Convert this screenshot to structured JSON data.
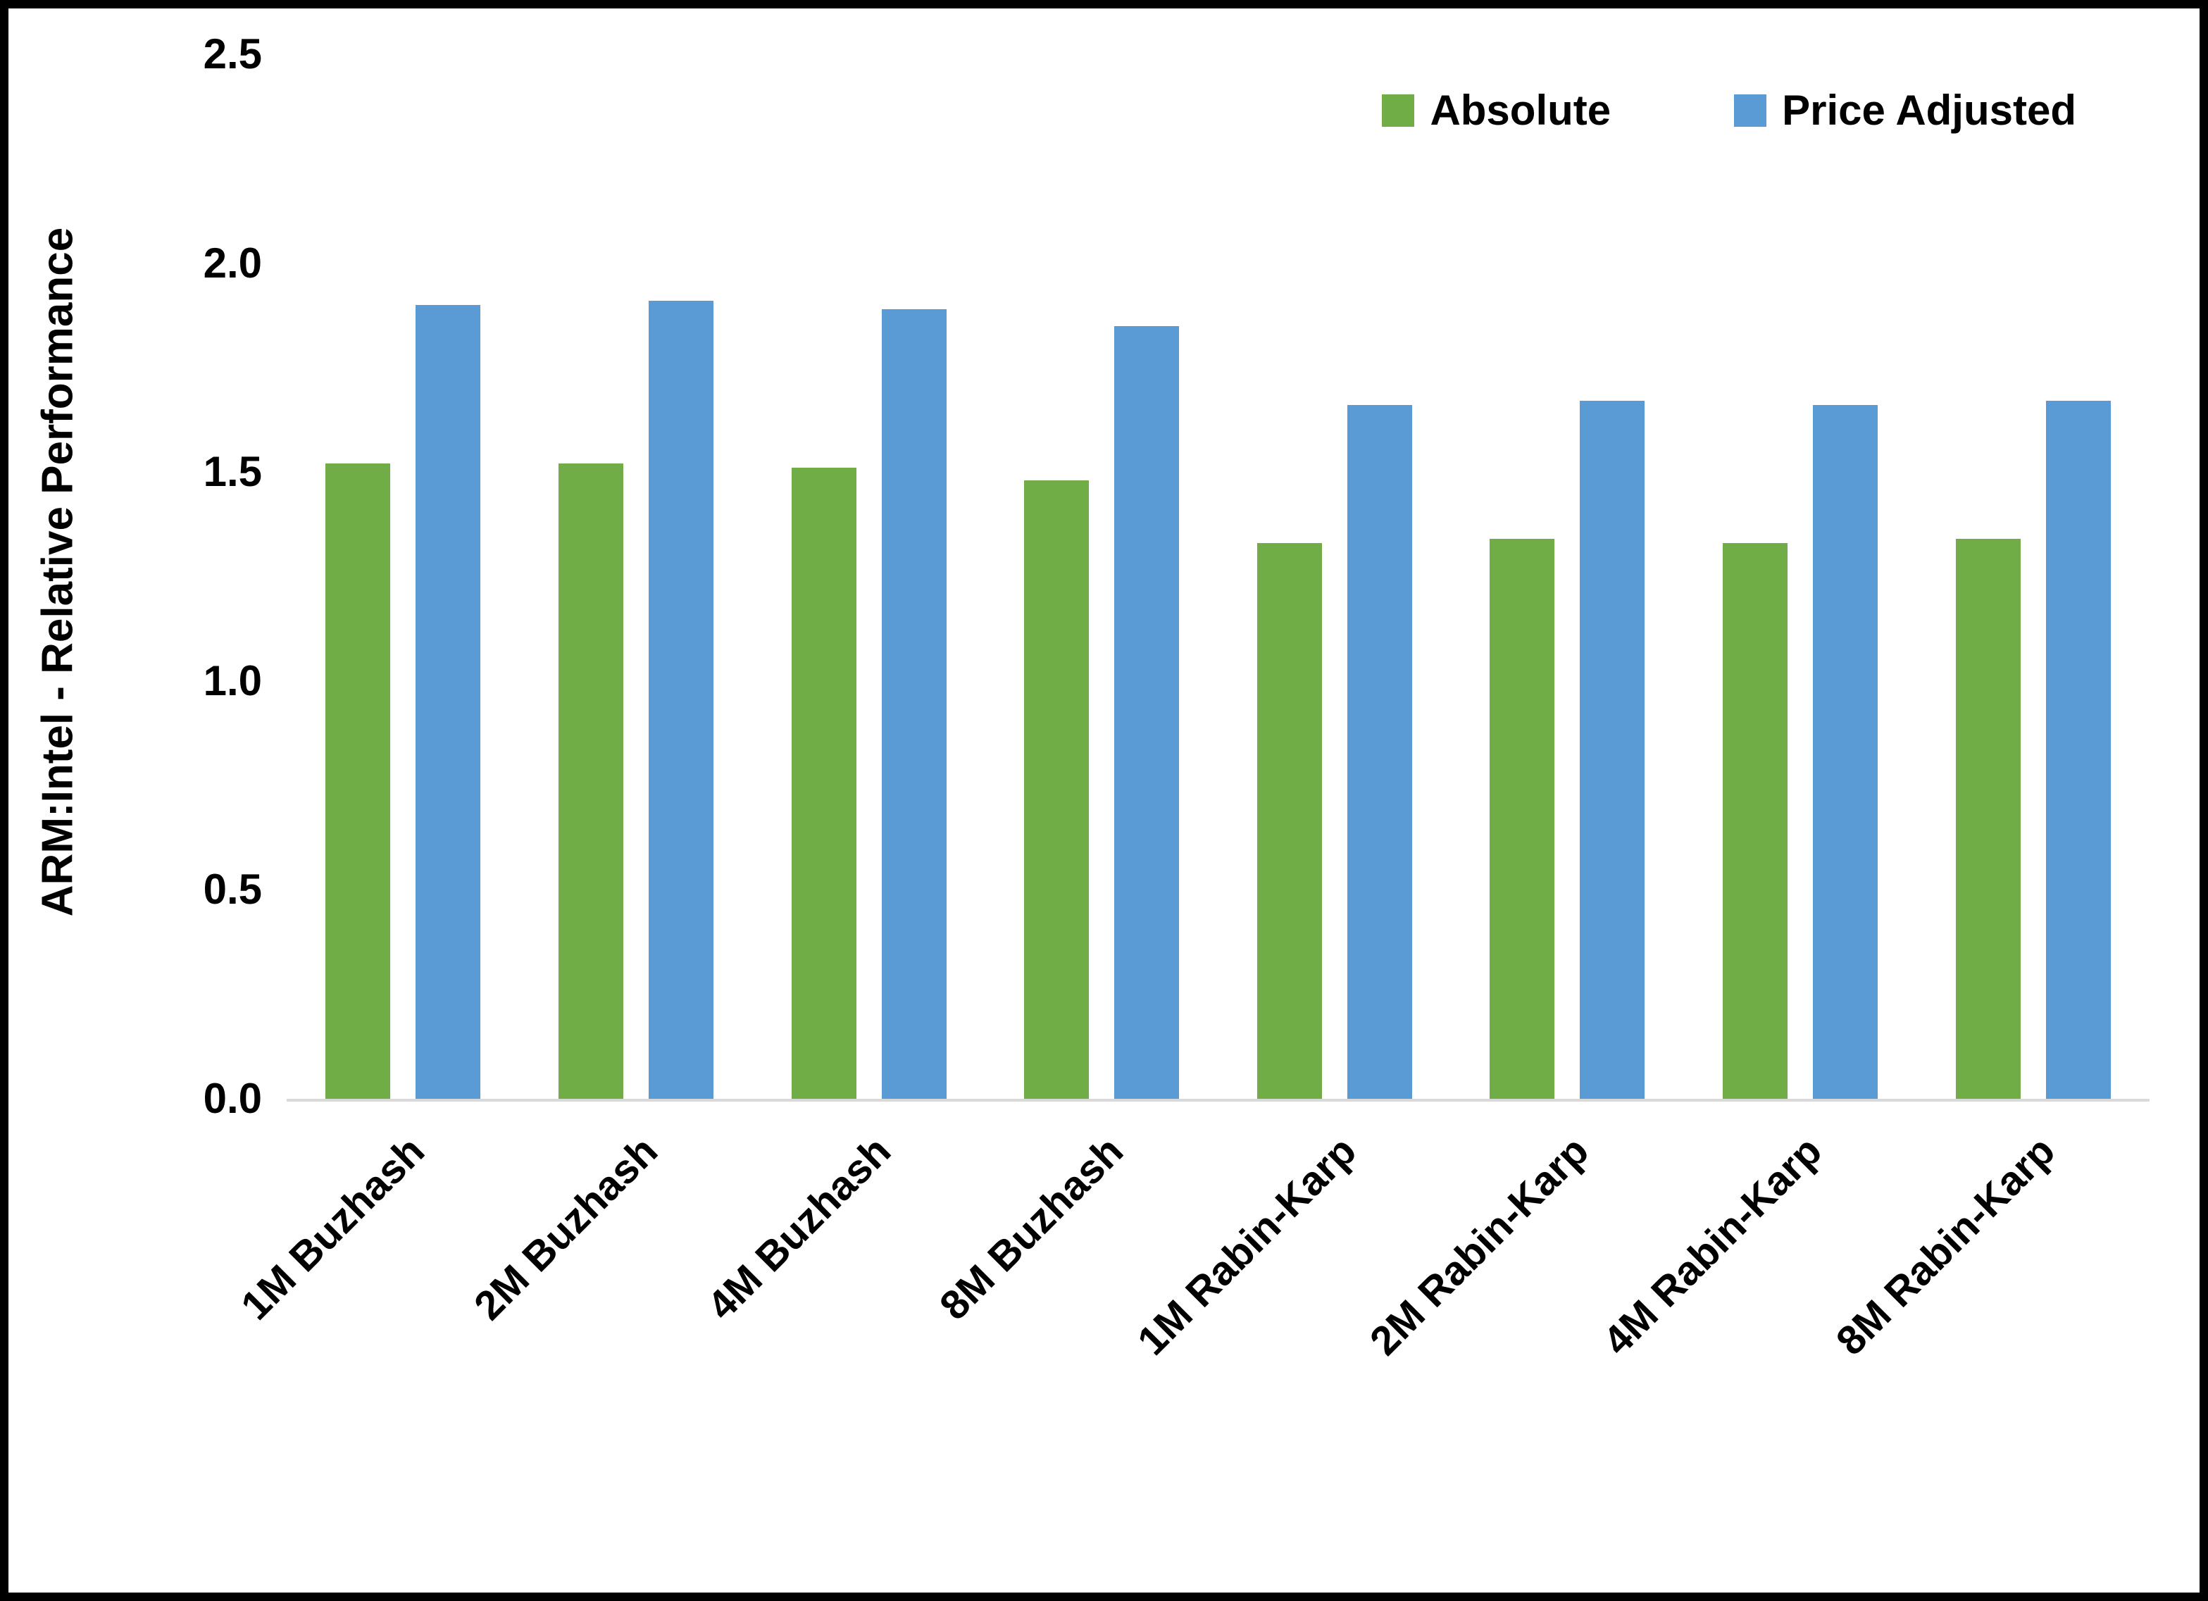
{
  "chart_data": {
    "type": "bar",
    "title": "",
    "categories": [
      "1M Buzhash",
      "2M Buzhash",
      "4M Buzhash",
      "8M Buzhash",
      "1M Rabin-Karp",
      "2M Rabin-Karp",
      "4M Rabin-Karp",
      "8M Rabin-Karp"
    ],
    "series": [
      {
        "name": "Absolute",
        "color": "#70AD47",
        "values": [
          1.52,
          1.52,
          1.51,
          1.48,
          1.33,
          1.34,
          1.33,
          1.34
        ]
      },
      {
        "name": "Price Adjusted",
        "color": "#5B9BD5",
        "values": [
          1.9,
          1.91,
          1.89,
          1.85,
          1.66,
          1.67,
          1.66,
          1.67
        ]
      }
    ],
    "xlabel": "",
    "ylabel": "ARM:Intel - Relative Performance",
    "ylim": [
      0,
      2.5
    ],
    "yticks": [
      "0.0",
      "0.5",
      "1.0",
      "1.5",
      "2.0",
      "2.5"
    ],
    "grid": false,
    "legend_position": "top-right",
    "axis_line_color": "#d9d9d9",
    "text_color": "#000000",
    "background_color": "#ffffff",
    "border_color": "#000000"
  }
}
